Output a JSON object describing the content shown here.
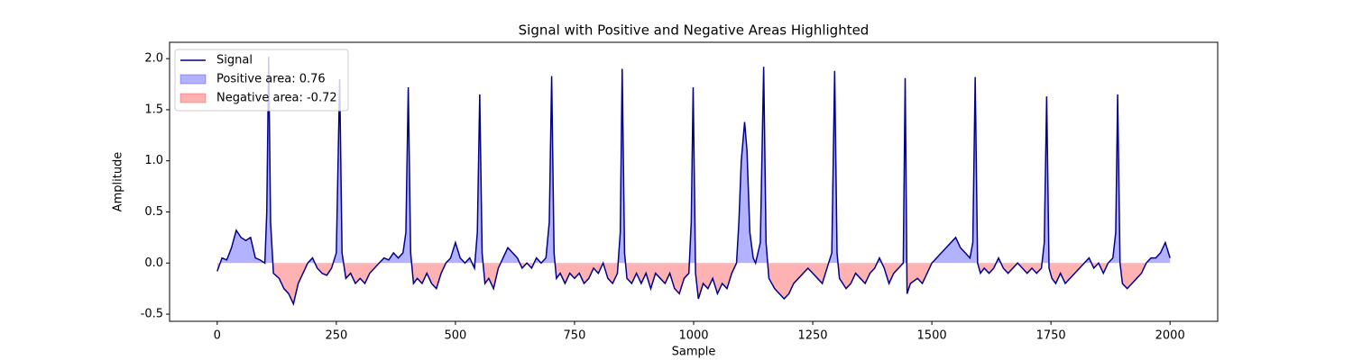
{
  "chart_data": {
    "type": "line",
    "title": "Signal with Positive and Negative Areas Highlighted",
    "x_label": "Sample",
    "y_label": "Amplitude",
    "xlim": [
      -100,
      2100
    ],
    "ylim": [
      -0.57,
      2.16
    ],
    "xticks": [
      0,
      250,
      500,
      750,
      1000,
      1250,
      1500,
      1750,
      2000
    ],
    "yticks": [
      -0.5,
      {
        "value": 0,
        "label": "0.0"
      },
      0.5,
      {
        "value": 1,
        "label": "1.0"
      },
      1.5,
      {
        "value": 2,
        "label": "2.0"
      }
    ],
    "legend": "upper left",
    "fills": [
      {
        "name": "Positive area: 0.76",
        "color": "blue"
      },
      {
        "name": "Negative area: -0.72",
        "color": "red"
      }
    ],
    "series": [
      {
        "name": "Signal",
        "color": "#00008b",
        "x": [
          0,
          10,
          20,
          30,
          40,
          50,
          60,
          70,
          80,
          90,
          100,
          104,
          108,
          112,
          118,
          130,
          140,
          150,
          160,
          170,
          180,
          190,
          200,
          210,
          220,
          230,
          240,
          250,
          257,
          262,
          270,
          280,
          290,
          300,
          310,
          320,
          330,
          340,
          350,
          360,
          370,
          380,
          390,
          396,
          401,
          406,
          412,
          420,
          430,
          440,
          450,
          460,
          470,
          480,
          490,
          500,
          510,
          520,
          530,
          540,
          546,
          551,
          556,
          562,
          570,
          580,
          590,
          600,
          610,
          620,
          630,
          640,
          650,
          660,
          670,
          680,
          690,
          697,
          702,
          707,
          712,
          720,
          730,
          740,
          750,
          760,
          770,
          780,
          790,
          800,
          810,
          820,
          830,
          840,
          846,
          850,
          855,
          860,
          870,
          880,
          890,
          900,
          910,
          920,
          930,
          940,
          950,
          960,
          970,
          980,
          990,
          995,
          999,
          1004,
          1010,
          1020,
          1030,
          1040,
          1050,
          1060,
          1070,
          1080,
          1090,
          1095,
          1100,
          1107,
          1112,
          1118,
          1125,
          1130,
          1140,
          1147,
          1152,
          1158,
          1170,
          1180,
          1190,
          1200,
          1210,
          1220,
          1230,
          1240,
          1250,
          1260,
          1270,
          1280,
          1290,
          1296,
          1301,
          1306,
          1320,
          1330,
          1340,
          1350,
          1360,
          1370,
          1380,
          1390,
          1400,
          1410,
          1420,
          1430,
          1440,
          1444,
          1448,
          1455,
          1470,
          1480,
          1490,
          1500,
          1510,
          1520,
          1530,
          1540,
          1550,
          1560,
          1570,
          1580,
          1586,
          1591,
          1596,
          1602,
          1610,
          1620,
          1630,
          1640,
          1650,
          1660,
          1670,
          1680,
          1690,
          1700,
          1710,
          1720,
          1730,
          1736,
          1741,
          1746,
          1752,
          1760,
          1770,
          1780,
          1790,
          1800,
          1810,
          1820,
          1830,
          1840,
          1850,
          1860,
          1870,
          1880,
          1886,
          1890,
          1895,
          1900,
          1910,
          1920,
          1930,
          1940,
          1950,
          1960,
          1970,
          1980,
          1990,
          2000
        ],
        "values": [
          -0.08,
          0.05,
          0.03,
          0.15,
          0.32,
          0.25,
          0.22,
          0.25,
          0.05,
          0.03,
          0.0,
          0.5,
          2.02,
          0.4,
          -0.1,
          -0.15,
          -0.25,
          -0.3,
          -0.4,
          -0.2,
          -0.1,
          0.0,
          0.05,
          -0.05,
          -0.1,
          -0.12,
          -0.05,
          0.1,
          1.8,
          0.1,
          -0.15,
          -0.1,
          -0.2,
          -0.15,
          -0.2,
          -0.1,
          -0.05,
          0.0,
          0.05,
          0.03,
          0.1,
          0.05,
          0.1,
          0.3,
          1.72,
          0.1,
          -0.2,
          -0.15,
          -0.2,
          -0.1,
          -0.2,
          -0.25,
          -0.1,
          0.0,
          0.05,
          0.2,
          0.05,
          0.0,
          0.05,
          -0.05,
          0.3,
          1.65,
          0.1,
          -0.2,
          -0.15,
          -0.25,
          -0.05,
          0.05,
          0.15,
          0.1,
          0.05,
          -0.05,
          0.0,
          -0.05,
          0.05,
          0.0,
          0.05,
          0.4,
          1.83,
          0.1,
          -0.15,
          -0.1,
          -0.2,
          -0.1,
          -0.15,
          -0.1,
          -0.2,
          -0.15,
          -0.05,
          -0.1,
          0.0,
          -0.15,
          -0.2,
          -0.1,
          0.3,
          1.9,
          0.1,
          -0.15,
          -0.2,
          -0.1,
          -0.2,
          -0.1,
          -0.25,
          -0.1,
          -0.15,
          -0.2,
          -0.1,
          -0.25,
          -0.3,
          -0.15,
          -0.1,
          0.4,
          1.72,
          -0.1,
          -0.35,
          -0.2,
          -0.25,
          -0.15,
          -0.3,
          -0.2,
          -0.25,
          -0.1,
          0.0,
          0.4,
          1.0,
          1.38,
          1.1,
          0.3,
          0.05,
          0.0,
          0.2,
          1.92,
          0.2,
          -0.15,
          -0.25,
          -0.3,
          -0.35,
          -0.3,
          -0.2,
          -0.15,
          -0.1,
          -0.05,
          -0.1,
          -0.15,
          -0.2,
          -0.05,
          0.1,
          1.88,
          0.1,
          -0.15,
          -0.25,
          -0.2,
          -0.1,
          -0.15,
          -0.2,
          -0.1,
          -0.05,
          0.05,
          -0.05,
          -0.2,
          -0.1,
          -0.05,
          0.0,
          1.81,
          -0.3,
          -0.2,
          -0.15,
          -0.2,
          -0.1,
          0.0,
          0.05,
          0.1,
          0.15,
          0.2,
          0.25,
          0.15,
          0.1,
          0.05,
          0.2,
          1.82,
          0.0,
          -0.1,
          -0.05,
          -0.1,
          -0.05,
          0.05,
          -0.05,
          -0.1,
          -0.05,
          0.0,
          -0.05,
          -0.1,
          -0.05,
          -0.1,
          -0.05,
          0.2,
          1.63,
          -0.05,
          -0.15,
          -0.2,
          -0.1,
          -0.2,
          -0.15,
          -0.1,
          -0.05,
          0.0,
          0.05,
          -0.05,
          0.0,
          -0.1,
          0.0,
          0.05,
          0.3,
          1.65,
          0.0,
          -0.2,
          -0.25,
          -0.2,
          -0.15,
          -0.1,
          0.0,
          0.05,
          0.05,
          0.1,
          0.2,
          0.05
        ]
      }
    ]
  }
}
